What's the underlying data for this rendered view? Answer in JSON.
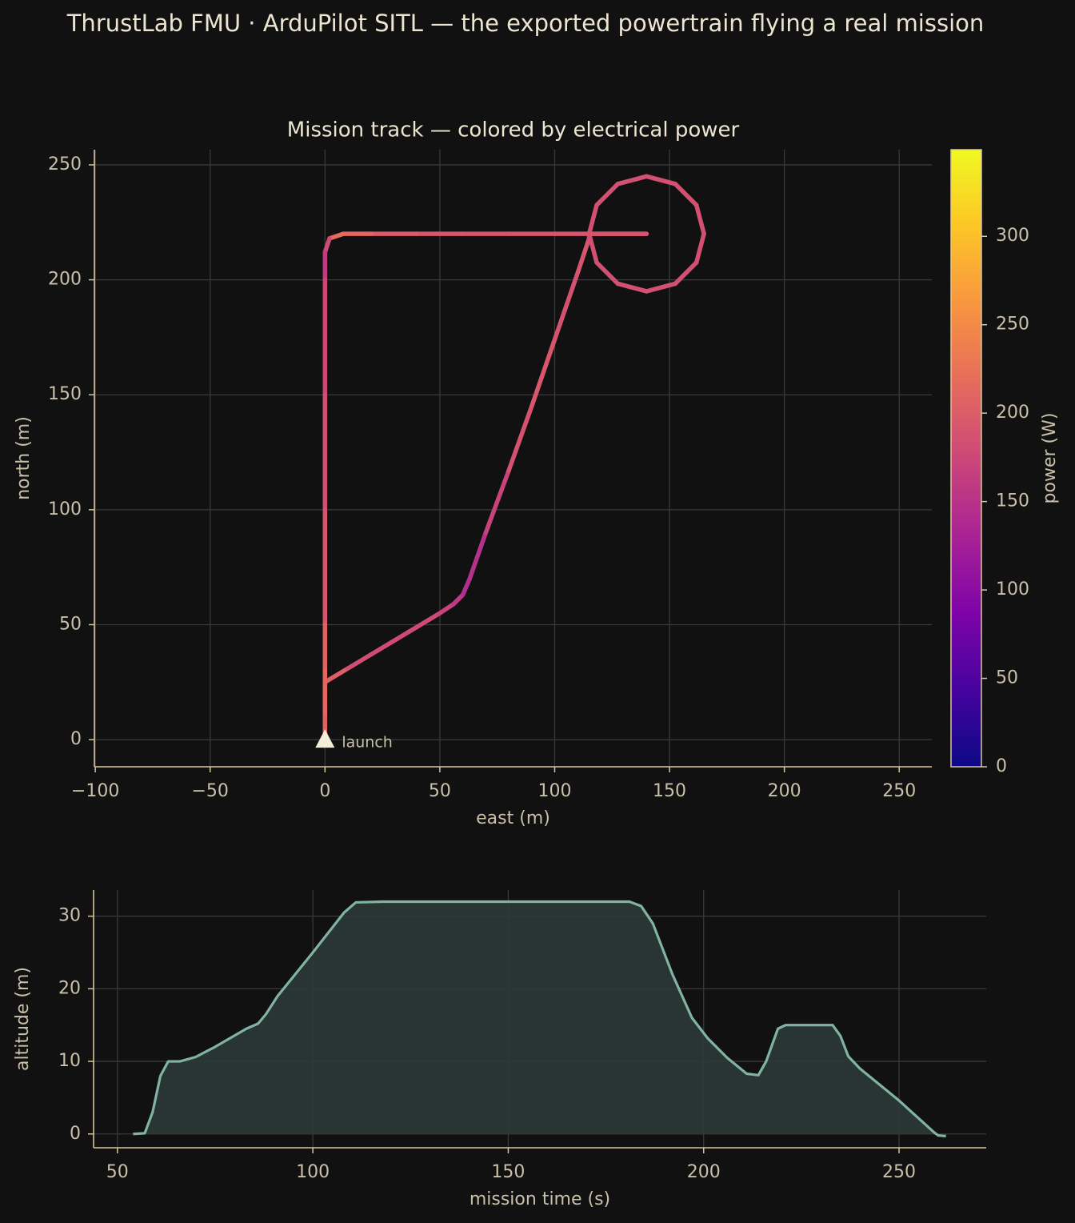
{
  "title": "ThrustLab FMU · ArduPilot SITL — the exported powertrain flying a real mission",
  "chart_data": [
    {
      "type": "track",
      "title": "Mission track — colored by electrical power",
      "xlabel": "east (m)",
      "ylabel": "north (m)",
      "x": [
        0,
        0,
        0,
        0,
        10,
        20,
        30,
        40,
        50,
        56,
        60,
        63,
        70,
        80,
        90,
        100,
        110,
        115,
        115,
        118.3,
        127.5,
        140,
        152.5,
        161.7,
        165,
        161.7,
        152.5,
        140,
        127.5,
        118.3,
        115,
        140,
        120,
        100,
        80,
        60,
        40,
        20,
        8,
        2,
        0,
        0,
        0,
        0,
        0,
        0,
        0,
        0
      ],
      "y": [
        0,
        10,
        20,
        25,
        31,
        37,
        43,
        49,
        55,
        59,
        63,
        70,
        90,
        117,
        145,
        174,
        203,
        218,
        220,
        232.5,
        241.7,
        245,
        241.7,
        232.5,
        220,
        207.5,
        198.3,
        195,
        198.3,
        207.5,
        220,
        220,
        220,
        220,
        220,
        220,
        220,
        220,
        220,
        218,
        212,
        200,
        150,
        100,
        50,
        30,
        10,
        0
      ],
      "power": [
        200,
        215,
        225,
        220,
        185,
        180,
        178,
        178,
        175,
        165,
        150,
        135,
        160,
        180,
        195,
        190,
        185,
        195,
        185,
        185,
        185,
        185,
        185,
        185,
        185,
        185,
        185,
        185,
        185,
        185,
        185,
        190,
        190,
        190,
        190,
        190,
        195,
        200,
        225,
        210,
        150,
        170,
        180,
        185,
        195,
        215,
        210,
        200
      ],
      "colormap": "plasma",
      "clabel": "power (W)",
      "clim": [
        0,
        349
      ],
      "cticks": [
        0,
        50,
        100,
        150,
        200,
        250,
        300
      ],
      "marker": {
        "label": "launch",
        "x": 0,
        "y": 0,
        "color": "#f3ecd8"
      },
      "xlim": [
        -100.4,
        264.2
      ],
      "ylim": [
        -11.8,
        256.6
      ],
      "xticks": [
        {
          "value": -100,
          "label": "−100"
        },
        {
          "value": -50,
          "label": "−50"
        },
        0,
        50,
        100,
        150,
        200,
        250
      ],
      "yticks": [
        0,
        50,
        100,
        150,
        200,
        250
      ],
      "grid": true
    },
    {
      "type": "area",
      "xlabel": "mission time (s)",
      "ylabel": "altitude (m)",
      "color": "#80b3a4",
      "fill": "#2c3a37",
      "x": [
        54,
        57,
        59,
        61,
        63,
        66,
        70,
        75,
        83,
        86,
        88,
        91,
        100,
        108,
        111,
        118,
        130,
        150,
        170,
        181,
        184,
        187,
        192,
        197,
        201,
        206,
        211,
        214,
        216,
        219,
        221,
        226,
        233,
        235,
        237,
        240,
        250,
        259,
        260,
        262
      ],
      "values": [
        0,
        0.1,
        3,
        8,
        10,
        10,
        10.6,
        12,
        14.5,
        15.2,
        16.5,
        19,
        25,
        30.5,
        31.9,
        32,
        32,
        32,
        32,
        32,
        31.4,
        29,
        22,
        16,
        13.2,
        10.5,
        8.3,
        8.1,
        10,
        14.5,
        15,
        15,
        15,
        13.5,
        10.7,
        9,
        4.6,
        0.2,
        -0.2,
        -0.3
      ],
      "xlim": [
        43.9,
        272.3
      ],
      "ylim": [
        -1.9,
        33.6
      ],
      "xticks": [
        50,
        100,
        150,
        200,
        250
      ],
      "yticks": [
        0,
        10,
        20,
        30
      ],
      "grid": true
    }
  ]
}
